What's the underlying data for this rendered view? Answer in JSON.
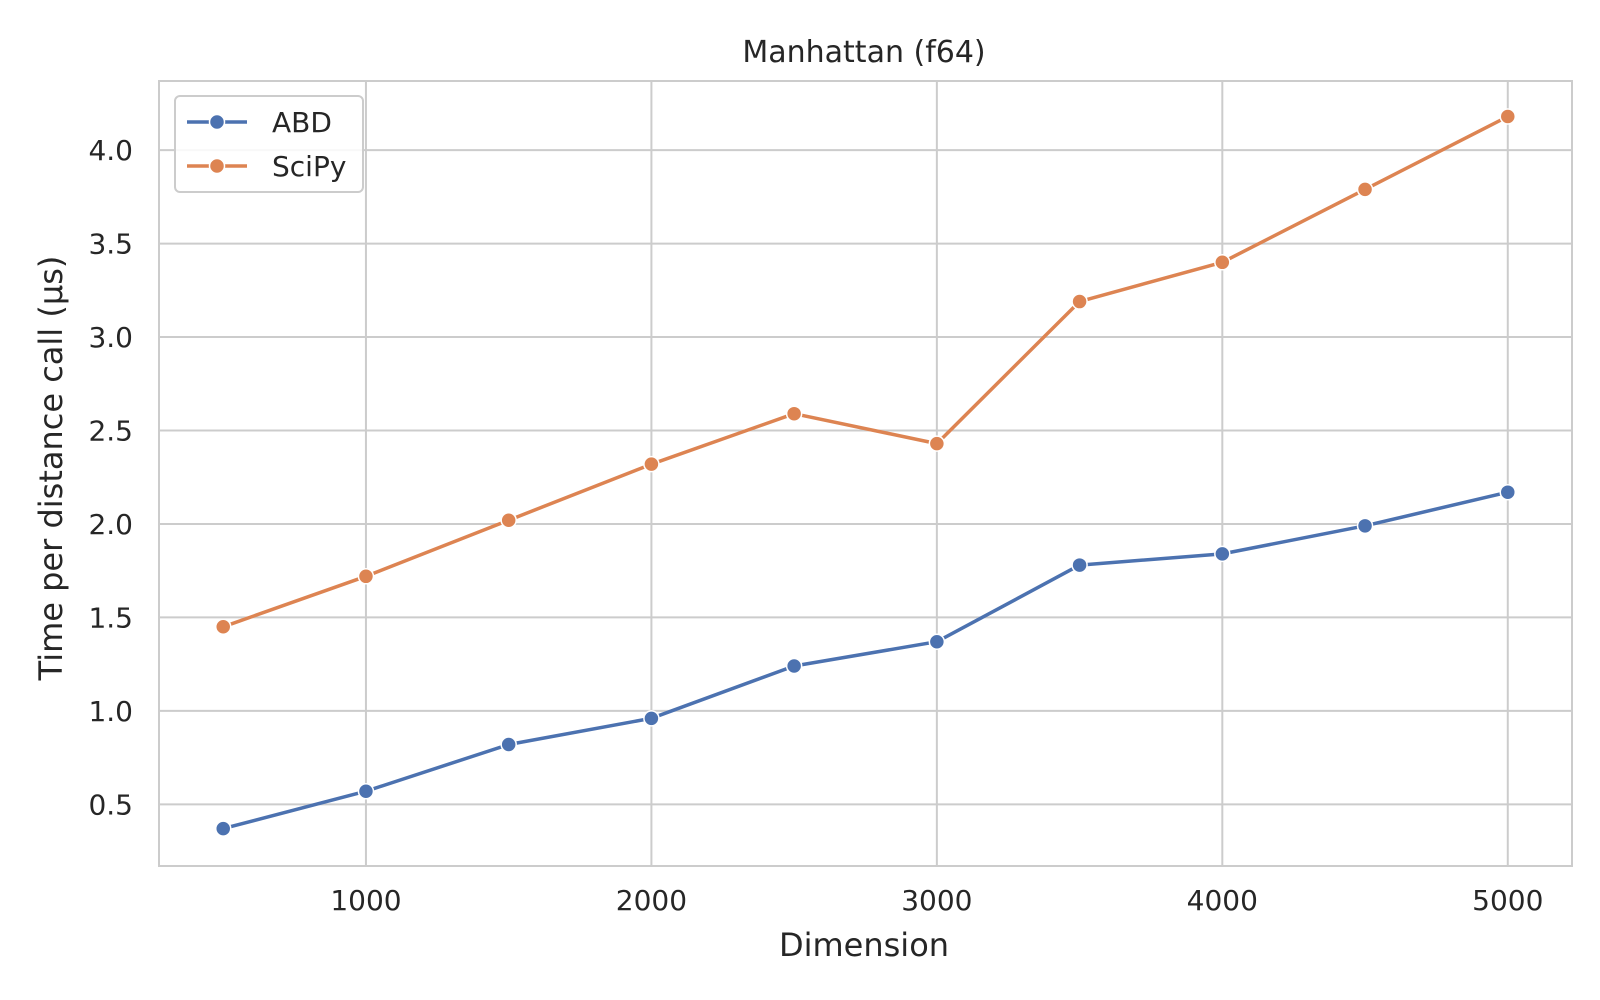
{
  "chart_data": {
    "type": "line",
    "title": "Manhattan (f64)",
    "xlabel": "Dimension",
    "ylabel": "Time per distance call (µs)",
    "x": [
      500,
      1000,
      1500,
      2000,
      2500,
      3000,
      3500,
      4000,
      4500,
      5000
    ],
    "xlim": [
      275,
      5225
    ],
    "ylim": [
      0.17,
      4.37
    ],
    "xticks": [
      1000,
      2000,
      3000,
      4000,
      5000
    ],
    "xtick_labels": [
      "1000",
      "2000",
      "3000",
      "4000",
      "5000"
    ],
    "yticks": [
      0.5,
      1.0,
      1.5,
      2.0,
      2.5,
      3.0,
      3.5,
      4.0
    ],
    "ytick_labels": [
      "0.5",
      "1.0",
      "1.5",
      "2.0",
      "2.5",
      "3.0",
      "3.5",
      "4.0"
    ],
    "grid": true,
    "legend_position": "top-left",
    "marker": "circle",
    "series": [
      {
        "name": "ABD",
        "color": "#4c72b0",
        "values": [
          0.37,
          0.57,
          0.82,
          0.96,
          1.24,
          1.37,
          1.78,
          1.84,
          1.99,
          2.17
        ]
      },
      {
        "name": "SciPy",
        "color": "#dd8452",
        "values": [
          1.45,
          1.72,
          2.02,
          2.32,
          2.59,
          2.43,
          3.19,
          3.4,
          3.79,
          4.18
        ]
      }
    ],
    "colors": {
      "grid": "#cccccc",
      "frame": "#cccccc",
      "text": "#262626",
      "marker_edge": "#ffffff"
    }
  }
}
